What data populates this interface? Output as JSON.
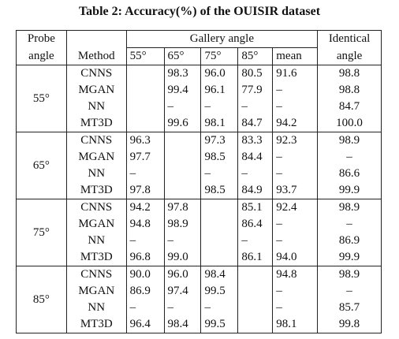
{
  "title": "Table 2: Accuracy(%) of the OUISIR dataset",
  "header": {
    "probe": [
      "Probe",
      "angle"
    ],
    "method": "Method",
    "gallery": "Gallery angle",
    "gallery_cols": [
      "55°",
      "65°",
      "75°",
      "85°",
      "mean"
    ],
    "identical": [
      "Identical",
      "angle"
    ]
  },
  "groups": [
    {
      "angle": "55°",
      "rows": [
        {
          "method": "CNNS",
          "cells": [
            null,
            "98.3",
            "96.0",
            "80.5",
            "91.6"
          ],
          "identical": "98.8"
        },
        {
          "method": "MGAN",
          "cells": [
            null,
            "99.4",
            "96.1",
            "77.9",
            "–"
          ],
          "identical": "98.8"
        },
        {
          "method": "NN",
          "cells": [
            null,
            "–",
            "–",
            "–",
            "–"
          ],
          "identical": "84.7"
        },
        {
          "method": "MT3D",
          "cells": [
            null,
            "99.6",
            "98.1",
            "84.7",
            "94.2"
          ],
          "identical": "100.0"
        }
      ]
    },
    {
      "angle": "65°",
      "rows": [
        {
          "method": "CNNS",
          "cells": [
            "96.3",
            null,
            "97.3",
            "83.3",
            "92.3"
          ],
          "identical": "98.9"
        },
        {
          "method": "MGAN",
          "cells": [
            "97.7",
            null,
            "98.5",
            "84.4",
            "–"
          ],
          "identical": "–"
        },
        {
          "method": "NN",
          "cells": [
            "–",
            null,
            "–",
            "–",
            "–"
          ],
          "identical": "86.6"
        },
        {
          "method": "MT3D",
          "cells": [
            "97.8",
            null,
            "98.5",
            "84.9",
            "93.7"
          ],
          "identical": "99.9"
        }
      ]
    },
    {
      "angle": "75°",
      "rows": [
        {
          "method": "CNNS",
          "cells": [
            "94.2",
            "97.8",
            null,
            "85.1",
            "92.4"
          ],
          "identical": "98.9"
        },
        {
          "method": "MGAN",
          "cells": [
            "94.8",
            "98.9",
            null,
            "86.4",
            "–"
          ],
          "identical": "–"
        },
        {
          "method": "NN",
          "cells": [
            "–",
            "–",
            null,
            "–",
            "–"
          ],
          "identical": "86.9"
        },
        {
          "method": "MT3D",
          "cells": [
            "96.8",
            "99.0",
            null,
            "86.1",
            "94.0"
          ],
          "identical": "99.9"
        }
      ]
    },
    {
      "angle": "85°",
      "rows": [
        {
          "method": "CNNS",
          "cells": [
            "90.0",
            "96.0",
            "98.4",
            null,
            "94.8"
          ],
          "identical": "98.9"
        },
        {
          "method": "MGAN",
          "cells": [
            "86.9",
            "97.4",
            "99.5",
            null,
            "–"
          ],
          "identical": "–"
        },
        {
          "method": "NN",
          "cells": [
            "–",
            "–",
            "–",
            null,
            "–"
          ],
          "identical": "85.7"
        },
        {
          "method": "MT3D",
          "cells": [
            "96.4",
            "98.4",
            "99.5",
            null,
            "98.1"
          ],
          "identical": "99.8"
        }
      ]
    }
  ]
}
